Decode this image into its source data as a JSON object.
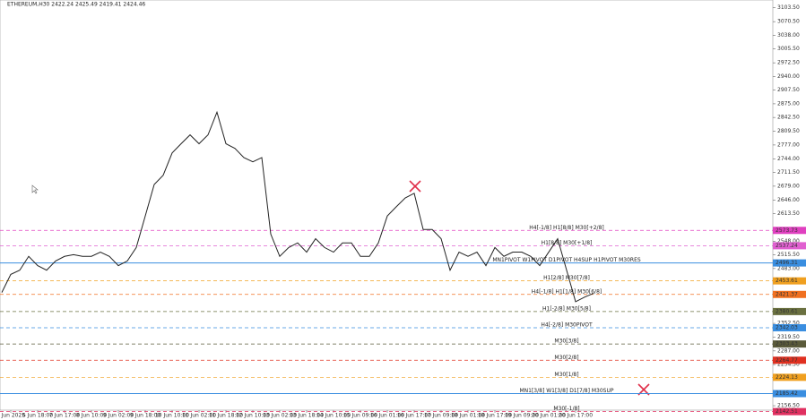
{
  "chart_data": {
    "type": "line",
    "title": "ETHEREUM,H30  2422.24 2425.49 2419.41 2424.46",
    "categories": [
      null,
      "6 Jun 2025",
      null,
      null,
      "6 Jun 18:00",
      null,
      null,
      "7 Jun 17:00",
      null,
      null,
      "8 Jun 10:00",
      null,
      null,
      "9 Jun 02:00",
      null,
      null,
      "9 Jun 18:00",
      null,
      null,
      "10 Jun 10:00",
      null,
      null,
      "11 Jun 02:00",
      null,
      null,
      "11 Jun 18:00",
      null,
      null,
      "12 Jun 10:00",
      null,
      null,
      "13 Jun 02:00",
      null,
      null,
      "13 Jun 18:00",
      null,
      null,
      "14 Jun 10:00",
      null,
      null,
      "15 Jun 09:00",
      null,
      null,
      "16 Jun 01:00",
      null,
      null,
      "16 Jun 17:00",
      null,
      null,
      "17 Jun 09:00",
      null,
      null,
      "18 Jun 01:00",
      null,
      null,
      "18 Jun 17:00",
      null,
      null,
      "19 Jun 09:00",
      null,
      null,
      "20 Jun 01:00",
      null,
      null,
      "20 Jun 17:00",
      null,
      null
    ],
    "values": [
      2426,
      2469,
      2479,
      2512,
      2490,
      2479,
      2501,
      2512,
      2516,
      2512,
      2512,
      2522,
      2512,
      2490,
      2501,
      2533,
      2608,
      2683,
      2705,
      2758,
      2780,
      2801,
      2780,
      2801,
      2855,
      2780,
      2769,
      2747,
      2737,
      2747,
      2565,
      2512,
      2533,
      2544,
      2522,
      2554,
      2533,
      2522,
      2544,
      2544,
      2512,
      2512,
      2544,
      2608,
      2630,
      2651,
      2662,
      2576,
      2576,
      2554,
      2479,
      2522,
      2512,
      2522,
      2490,
      2533,
      2512,
      2522,
      2522,
      2512,
      2490,
      2522,
      2554,
      2479,
      2404,
      2415,
      2424
    ],
    "color": "#222222",
    "ylim": [
      2146,
      3122
    ],
    "yticks": [
      {
        "value": 3103.5,
        "label": "3103.50"
      },
      {
        "value": 3070.5,
        "label": "3070.50"
      },
      {
        "value": 3038,
        "label": "3038.00"
      },
      {
        "value": 3005.5,
        "label": "3005.50"
      },
      {
        "value": 2972.5,
        "label": "2972.50"
      },
      {
        "value": 2940,
        "label": "2940.00"
      },
      {
        "value": 2907.5,
        "label": "2907.50"
      },
      {
        "value": 2875,
        "label": "2875.00"
      },
      {
        "value": 2842.5,
        "label": "2842.50"
      },
      {
        "value": 2809.5,
        "label": "2809.50"
      },
      {
        "value": 2777,
        "label": "2777.00"
      },
      {
        "value": 2744,
        "label": "2744.00"
      },
      {
        "value": 2711.5,
        "label": "2711.50"
      },
      {
        "value": 2679,
        "label": "2679.00"
      },
      {
        "value": 2646,
        "label": "2646.00"
      },
      {
        "value": 2613.5,
        "label": "2613.50"
      },
      {
        "value": 2548,
        "label": "2548.00"
      },
      {
        "value": 2515.5,
        "label": "2515.50"
      },
      {
        "value": 2483,
        "label": "2483.00"
      },
      {
        "value": 2352.5,
        "label": "2352.50"
      },
      {
        "value": 2319.5,
        "label": "2319.50"
      },
      {
        "value": 2287,
        "label": "2287.00"
      },
      {
        "value": 2254.5,
        "label": "2254.50"
      },
      {
        "value": 2156.5,
        "label": "2156.50"
      }
    ],
    "levels": [
      {
        "label": "H4[-1/8] H1[8/8] M30[+2/8]",
        "value": 2573.73,
        "color": "#e040c0",
        "dash": true
      },
      {
        "label": "H1[8/8] M30[+1/8]",
        "value": 2537.24,
        "color": "#e060d0",
        "dash": true
      },
      {
        "label": "MN1PIVOT W1PIVOT D1PIVOT H4SUP H1PIVOT M30RES",
        "value": 2496.31,
        "color": "#3a8ee0",
        "dash": false
      },
      {
        "label": "H1[2/8] M30[7/8]",
        "value": 2453.61,
        "color": "#f0a020",
        "dash": true
      },
      {
        "label": "H4[-1/8] H1[1/8] M30[6/8]",
        "value": 2421.37,
        "color": "#f07020",
        "dash": true
      },
      {
        "label": "H1[-2/8] M30[5/8]",
        "value": 2380.61,
        "color": "#6a7040",
        "dash": true
      },
      {
        "label": "H4[-2/8] M30PIVOT",
        "value": 2342.03,
        "color": "#3a8ee0",
        "dash": true
      },
      {
        "label": "M30[3/8]",
        "value": 2303.43,
        "color": "#5a5a3a",
        "dash": true
      },
      {
        "label": "M30[2/8]",
        "value": 2264.77,
        "color": "#e03020",
        "dash": true
      },
      {
        "label": "M30[1/8]",
        "value": 2224.13,
        "color": "#f0a020",
        "dash": true
      },
      {
        "label": "MN1[3/8] W1[3/8] D1[7/8] M30SUP",
        "value": 2185.42,
        "color": "#3a8ee0",
        "dash": false
      },
      {
        "label": "M30[-1/8]",
        "value": 2142.51,
        "color": "#e03060",
        "dash": true
      }
    ]
  }
}
